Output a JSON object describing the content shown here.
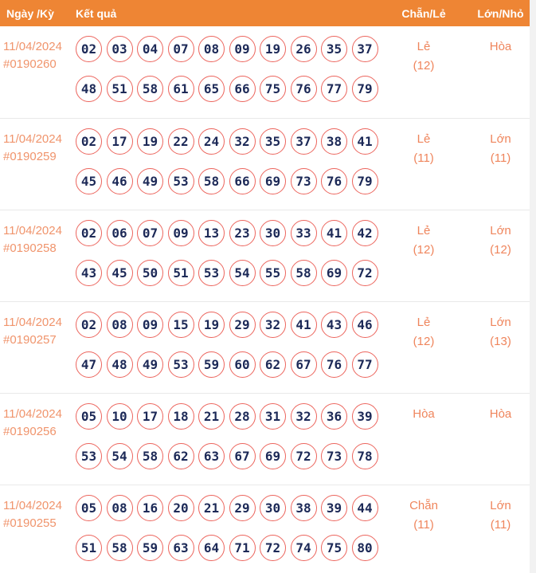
{
  "header": {
    "col_date": "Ngày /Kỳ",
    "col_result": "Kết quả",
    "col_parity": "Chẵn/Lẻ",
    "col_size": "Lớn/Nhỏ"
  },
  "colors": {
    "header_bg": "#ee8534",
    "header_text": "#ffffff",
    "date_text": "#f0946c",
    "status_text": "#ef855c",
    "ball_border": "#ec655d",
    "ball_number": "#1c2957",
    "separator": "#e9e9e9"
  },
  "rows": [
    {
      "date": "11/04/2024",
      "draw_id": "#0190260",
      "numbers_line1": [
        "02",
        "03",
        "04",
        "07",
        "08",
        "09",
        "19",
        "26",
        "35",
        "37"
      ],
      "numbers_line2": [
        "48",
        "51",
        "58",
        "61",
        "65",
        "66",
        "75",
        "76",
        "77",
        "79"
      ],
      "parity": {
        "label": "Lẻ",
        "count": "(12)"
      },
      "size": {
        "label": "Hòa",
        "count": ""
      }
    },
    {
      "date": "11/04/2024",
      "draw_id": "#0190259",
      "numbers_line1": [
        "02",
        "17",
        "19",
        "22",
        "24",
        "32",
        "35",
        "37",
        "38",
        "41"
      ],
      "numbers_line2": [
        "45",
        "46",
        "49",
        "53",
        "58",
        "66",
        "69",
        "73",
        "76",
        "79"
      ],
      "parity": {
        "label": "Lẻ",
        "count": "(11)"
      },
      "size": {
        "label": "Lớn",
        "count": "(11)"
      }
    },
    {
      "date": "11/04/2024",
      "draw_id": "#0190258",
      "numbers_line1": [
        "02",
        "06",
        "07",
        "09",
        "13",
        "23",
        "30",
        "33",
        "41",
        "42"
      ],
      "numbers_line2": [
        "43",
        "45",
        "50",
        "51",
        "53",
        "54",
        "55",
        "58",
        "69",
        "72"
      ],
      "parity": {
        "label": "Lẻ",
        "count": "(12)"
      },
      "size": {
        "label": "Lớn",
        "count": "(12)"
      }
    },
    {
      "date": "11/04/2024",
      "draw_id": "#0190257",
      "numbers_line1": [
        "02",
        "08",
        "09",
        "15",
        "19",
        "29",
        "32",
        "41",
        "43",
        "46"
      ],
      "numbers_line2": [
        "47",
        "48",
        "49",
        "53",
        "59",
        "60",
        "62",
        "67",
        "76",
        "77"
      ],
      "parity": {
        "label": "Lẻ",
        "count": "(12)"
      },
      "size": {
        "label": "Lớn",
        "count": "(13)"
      }
    },
    {
      "date": "11/04/2024",
      "draw_id": "#0190256",
      "numbers_line1": [
        "05",
        "10",
        "17",
        "18",
        "21",
        "28",
        "31",
        "32",
        "36",
        "39"
      ],
      "numbers_line2": [
        "53",
        "54",
        "58",
        "62",
        "63",
        "67",
        "69",
        "72",
        "73",
        "78"
      ],
      "parity": {
        "label": "Hòa",
        "count": ""
      },
      "size": {
        "label": "Hòa",
        "count": ""
      }
    },
    {
      "date": "11/04/2024",
      "draw_id": "#0190255",
      "numbers_line1": [
        "05",
        "08",
        "16",
        "20",
        "21",
        "29",
        "30",
        "38",
        "39",
        "44"
      ],
      "numbers_line2": [
        "51",
        "58",
        "59",
        "63",
        "64",
        "71",
        "72",
        "74",
        "75",
        "80"
      ],
      "parity": {
        "label": "Chẵn",
        "count": "(11)"
      },
      "size": {
        "label": "Lớn",
        "count": "(11)"
      }
    }
  ]
}
